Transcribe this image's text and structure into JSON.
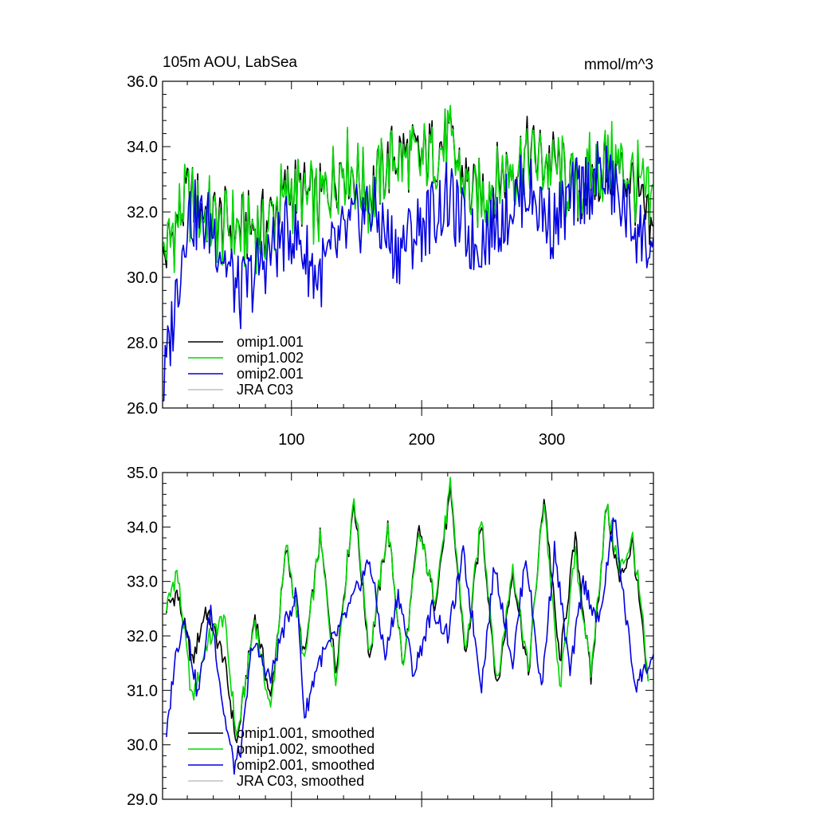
{
  "header": {
    "left_title": "105m AOU, LabSea",
    "right_units": "mmol/m^3"
  },
  "chart_data": [
    {
      "type": "line",
      "title": "105m AOU, LabSea",
      "units": "mmol/m^3",
      "xlim": [
        1,
        378
      ],
      "ylim": [
        26.0,
        36.0
      ],
      "x_ticks": [
        100,
        200,
        300
      ],
      "x_tick_labels": [
        "100",
        "200",
        "300"
      ],
      "y_ticks": [
        26.0,
        28.0,
        30.0,
        32.0,
        34.0,
        36.0
      ],
      "y_tick_labels": [
        "26.0",
        "28.0",
        "30.0",
        "32.0",
        "34.0",
        "36.0"
      ],
      "legend_position": "bottom-left",
      "legend": [
        "omip1.001",
        "omip1.002",
        "omip2.001",
        "JRA C03"
      ],
      "series": [
        {
          "name": "omip1.001",
          "color": "#000000",
          "x": [
            1,
            20,
            40,
            60,
            80,
            100,
            120,
            140,
            160,
            180,
            200,
            220,
            240,
            260,
            280,
            300,
            320,
            340,
            360,
            378
          ],
          "values": [
            30.5,
            32.5,
            31.8,
            31.5,
            31.6,
            32.8,
            32.2,
            33.6,
            32.6,
            33.8,
            33.6,
            34.2,
            32.4,
            33.1,
            33.8,
            33.5,
            32.6,
            33.4,
            33.1,
            31.0
          ]
        },
        {
          "name": "omip1.002",
          "color": "#00d800",
          "x": [
            1,
            20,
            40,
            60,
            80,
            100,
            120,
            140,
            160,
            180,
            200,
            220,
            240,
            260,
            280,
            300,
            320,
            340,
            360,
            378
          ],
          "values": [
            30.6,
            32.4,
            31.7,
            31.4,
            31.5,
            32.7,
            32.1,
            33.5,
            32.5,
            33.7,
            33.5,
            34.1,
            32.3,
            33.0,
            33.7,
            33.4,
            32.7,
            33.5,
            33.3,
            32.0
          ]
        },
        {
          "name": "omip2.001",
          "color": "#0000e0",
          "x": [
            1,
            20,
            40,
            60,
            80,
            100,
            120,
            140,
            160,
            180,
            200,
            220,
            240,
            260,
            280,
            300,
            320,
            340,
            360,
            378
          ],
          "values": [
            26.4,
            32.0,
            31.5,
            29.4,
            30.6,
            31.5,
            30.0,
            31.2,
            32.2,
            30.8,
            31.6,
            32.4,
            31.0,
            31.8,
            32.8,
            31.6,
            32.6,
            33.2,
            31.8,
            30.8
          ]
        },
        {
          "name": "JRA C03",
          "color": "#c0c0c0",
          "x": [],
          "values": []
        }
      ]
    },
    {
      "type": "line",
      "xlim": [
        1,
        378
      ],
      "ylim": [
        29.0,
        35.0
      ],
      "x_ticks": [
        100,
        200,
        300
      ],
      "x_tick_labels": [],
      "y_ticks": [
        29.0,
        30.0,
        31.0,
        32.0,
        33.0,
        34.0,
        35.0
      ],
      "y_tick_labels": [
        "29.0",
        "30.0",
        "31.0",
        "32.0",
        "33.0",
        "34.0",
        "35.0"
      ],
      "legend_position": "bottom-left",
      "legend": [
        "omip1.001, smoothed",
        "omip1.002, smoothed",
        "omip2.001, smoothed",
        "JRA C03, smoothed"
      ],
      "series": [
        {
          "name": "omip1.001, smoothed",
          "color": "#000000",
          "x": [
            4,
            12,
            24,
            34,
            48,
            58,
            72,
            84,
            96,
            110,
            122,
            134,
            148,
            160,
            174,
            186,
            198,
            210,
            222,
            234,
            246,
            258,
            270,
            282,
            294,
            306,
            318,
            330,
            342,
            352,
            362,
            370,
            374
          ],
          "values": [
            32.5,
            32.8,
            31.5,
            32.5,
            31.6,
            30.0,
            32.4,
            30.8,
            33.6,
            31.6,
            33.8,
            31.4,
            34.5,
            31.6,
            34.0,
            31.4,
            34.0,
            32.6,
            34.6,
            31.6,
            34.1,
            31.0,
            33.2,
            31.3,
            34.6,
            31.5,
            33.8,
            31.2,
            34.4,
            33.0,
            33.7,
            32.0,
            31.0
          ]
        },
        {
          "name": "omip1.002, smoothed",
          "color": "#00d800",
          "x": [
            4,
            12,
            24,
            34,
            48,
            58,
            72,
            84,
            96,
            110,
            122,
            134,
            148,
            160,
            174,
            186,
            198,
            210,
            222,
            234,
            246,
            258,
            270,
            282,
            294,
            306,
            318,
            330,
            342,
            352,
            362,
            370,
            374
          ],
          "values": [
            32.5,
            33.2,
            30.8,
            31.8,
            32.4,
            30.1,
            32.3,
            30.6,
            33.7,
            31.5,
            33.8,
            31.2,
            34.6,
            31.7,
            34.0,
            31.4,
            33.9,
            32.7,
            34.7,
            31.7,
            34.2,
            31.1,
            33.3,
            31.4,
            34.5,
            31.0,
            33.5,
            31.3,
            34.4,
            33.2,
            33.8,
            32.2,
            31.0
          ]
        },
        {
          "name": "omip2.001, smoothed",
          "color": "#0000e0",
          "x": [
            4,
            10,
            18,
            28,
            38,
            48,
            56,
            62,
            70,
            84,
            92,
            104,
            110,
            120,
            134,
            146,
            160,
            172,
            182,
            194,
            208,
            220,
            232,
            246,
            256,
            270,
            280,
            292,
            302,
            314,
            324,
            336,
            348,
            356,
            364,
            372,
            378
          ],
          "values": [
            30.1,
            31.5,
            32.4,
            30.9,
            32.5,
            30.6,
            29.6,
            30.0,
            31.9,
            31.2,
            32.0,
            32.8,
            30.5,
            31.5,
            32.0,
            32.6,
            33.4,
            31.6,
            32.8,
            31.3,
            32.5,
            32.0,
            33.5,
            31.1,
            33.3,
            31.5,
            33.5,
            31.0,
            33.6,
            31.3,
            33.0,
            32.2,
            34.2,
            32.5,
            31.1,
            31.4,
            31.6
          ]
        },
        {
          "name": "JRA C03, smoothed",
          "color": "#c0c0c0",
          "x": [],
          "values": []
        }
      ]
    }
  ]
}
